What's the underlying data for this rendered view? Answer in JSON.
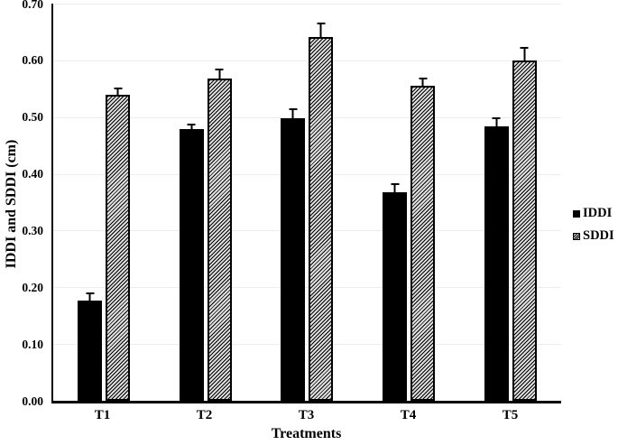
{
  "chart_data": {
    "type": "bar",
    "title": "",
    "xlabel": "Treatments",
    "ylabel": "IDDI and SDDI (cm)",
    "categories": [
      "T1",
      "T2",
      "T3",
      "T4",
      "T5"
    ],
    "series": [
      {
        "name": "IDDI",
        "style": "solid-black",
        "values": [
          0.177,
          0.479,
          0.498,
          0.367,
          0.484
        ],
        "errors_plus": [
          0.014,
          0.01,
          0.017,
          0.017,
          0.015
        ]
      },
      {
        "name": "SDDI",
        "style": "diagonal-hatch",
        "values": [
          0.54,
          0.568,
          0.641,
          0.556,
          0.6
        ],
        "errors_plus": [
          0.012,
          0.018,
          0.025,
          0.014,
          0.024
        ]
      }
    ],
    "ylim": [
      0.0,
      0.7
    ],
    "yticks": [
      "0.00",
      "0.10",
      "0.20",
      "0.30",
      "0.40",
      "0.50",
      "0.60",
      "0.70"
    ],
    "grid": true,
    "legend_position": "right",
    "error_bar_direction": "plus-only"
  },
  "colors": {
    "bar_fill": "#000000",
    "hatch_line": "#000000",
    "hatch_background": "#dedede",
    "gridline": "#ececec",
    "axis": "#000000",
    "background": "#ffffff"
  }
}
